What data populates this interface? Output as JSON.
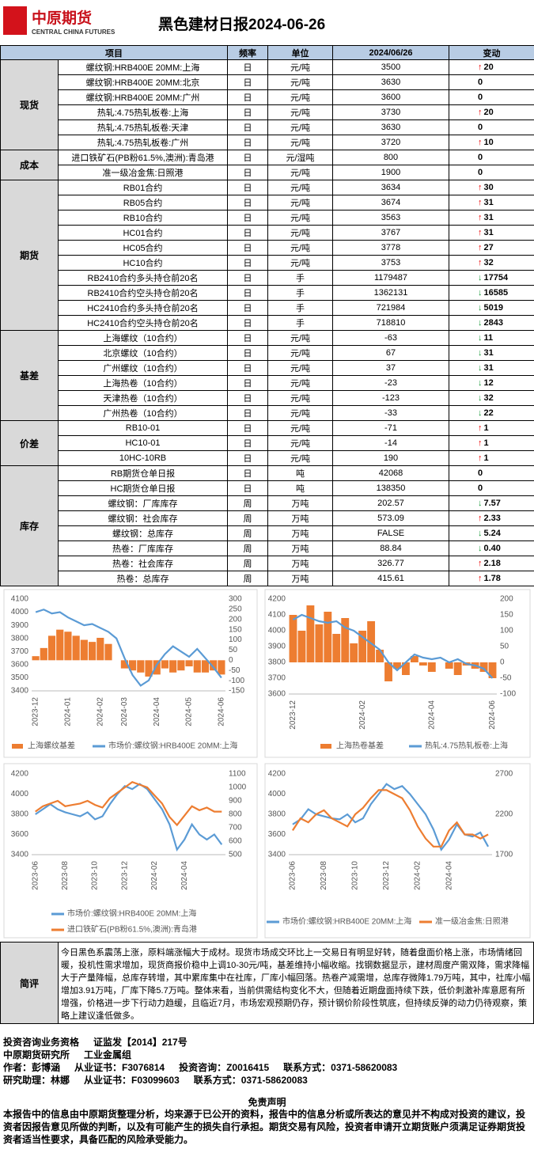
{
  "header": {
    "logo_cn": "中原期货",
    "logo_en": "CENTRAL CHINA FUTURES",
    "title": "黑色建材日报2024-06-26"
  },
  "table": {
    "columns": [
      "项目",
      "频率",
      "单位",
      "2024/06/26",
      "变动"
    ],
    "groups": [
      {
        "name": "现货",
        "rows": [
          {
            "cells": [
              "螺纹钢:HRB400E 20MM:上海",
              "日",
              "元/吨",
              "3500",
              "20"
            ],
            "trend": "up"
          },
          {
            "cells": [
              "螺纹钢:HRB400E 20MM:北京",
              "日",
              "元/吨",
              "3630",
              "0"
            ],
            "trend": "flat"
          },
          {
            "cells": [
              "螺纹钢:HRB400E 20MM:广州",
              "日",
              "元/吨",
              "3600",
              "0"
            ],
            "trend": "flat"
          },
          {
            "cells": [
              "热轧:4.75热轧板卷:上海",
              "日",
              "元/吨",
              "3730",
              "20"
            ],
            "trend": "up"
          },
          {
            "cells": [
              "热轧:4.75热轧板卷:天津",
              "日",
              "元/吨",
              "3630",
              "0"
            ],
            "trend": "flat"
          },
          {
            "cells": [
              "热轧:4.75热轧板卷:广州",
              "日",
              "元/吨",
              "3720",
              "10"
            ],
            "trend": "up"
          }
        ]
      },
      {
        "name": "成本",
        "rows": [
          {
            "cells": [
              "进口铁矿石(PB粉61.5%,澳洲):青岛港",
              "日",
              "元/湿吨",
              "800",
              "0"
            ],
            "trend": "flat"
          },
          {
            "cells": [
              "准一级冶金焦:日照港",
              "日",
              "元/吨",
              "1900",
              "0"
            ],
            "trend": "flat"
          }
        ]
      },
      {
        "name": "期货",
        "rows": [
          {
            "cells": [
              "RB01合约",
              "日",
              "元/吨",
              "3634",
              "30"
            ],
            "trend": "up"
          },
          {
            "cells": [
              "RB05合约",
              "日",
              "元/吨",
              "3674",
              "31"
            ],
            "trend": "up"
          },
          {
            "cells": [
              "RB10合约",
              "日",
              "元/吨",
              "3563",
              "31"
            ],
            "trend": "up"
          },
          {
            "cells": [
              "HC01合约",
              "日",
              "元/吨",
              "3767",
              "31"
            ],
            "trend": "up"
          },
          {
            "cells": [
              "HC05合约",
              "日",
              "元/吨",
              "3778",
              "27"
            ],
            "trend": "up"
          },
          {
            "cells": [
              "HC10合约",
              "日",
              "元/吨",
              "3753",
              "32"
            ],
            "trend": "up"
          },
          {
            "cells": [
              "RB2410合约多头持仓前20名",
              "日",
              "手",
              "1179487",
              "17754"
            ],
            "trend": "down"
          },
          {
            "cells": [
              "RB2410合约空头持仓前20名",
              "日",
              "手",
              "1362131",
              "16585"
            ],
            "trend": "down"
          },
          {
            "cells": [
              "HC2410合约多头持仓前20名",
              "日",
              "手",
              "721984",
              "5019"
            ],
            "trend": "down"
          },
          {
            "cells": [
              "HC2410合约空头持仓前20名",
              "日",
              "手",
              "718810",
              "2843"
            ],
            "trend": "down"
          }
        ]
      },
      {
        "name": "基差",
        "rows": [
          {
            "cells": [
              "上海螺纹（10合约）",
              "日",
              "元/吨",
              "-63",
              "11"
            ],
            "trend": "down"
          },
          {
            "cells": [
              "北京螺纹（10合约）",
              "日",
              "元/吨",
              "67",
              "31"
            ],
            "trend": "down"
          },
          {
            "cells": [
              "广州螺纹（10合约）",
              "日",
              "元/吨",
              "37",
              "31"
            ],
            "trend": "down"
          },
          {
            "cells": [
              "上海热卷（10合约）",
              "日",
              "元/吨",
              "-23",
              "12"
            ],
            "trend": "down"
          },
          {
            "cells": [
              "天津热卷（10合约）",
              "日",
              "元/吨",
              "-123",
              "32"
            ],
            "trend": "down"
          },
          {
            "cells": [
              "广州热卷（10合约）",
              "日",
              "元/吨",
              "-33",
              "22"
            ],
            "trend": "down"
          }
        ]
      },
      {
        "name": "价差",
        "rows": [
          {
            "cells": [
              "RB10-01",
              "日",
              "元/吨",
              "-71",
              "1"
            ],
            "trend": "up"
          },
          {
            "cells": [
              "HC10-01",
              "日",
              "元/吨",
              "-14",
              "1"
            ],
            "trend": "up"
          },
          {
            "cells": [
              "10HC-10RB",
              "日",
              "元/吨",
              "190",
              "1"
            ],
            "trend": "up"
          }
        ]
      },
      {
        "name": "库存",
        "rows": [
          {
            "cells": [
              "RB期货仓单日报",
              "日",
              "吨",
              "42068",
              "0"
            ],
            "trend": "flat"
          },
          {
            "cells": [
              "HC期货仓单日报",
              "日",
              "吨",
              "138350",
              "0"
            ],
            "trend": "flat"
          },
          {
            "cells": [
              "螺纹钢：厂库库存",
              "周",
              "万吨",
              "202.57",
              "7.57"
            ],
            "trend": "down"
          },
          {
            "cells": [
              "螺纹钢：社会库存",
              "周",
              "万吨",
              "573.09",
              "2.33"
            ],
            "trend": "up"
          },
          {
            "cells": [
              "螺纹钢：总库存",
              "周",
              "万吨",
              "FALSE",
              "5.24"
            ],
            "trend": "down"
          },
          {
            "cells": [
              "热卷：厂库库存",
              "周",
              "万吨",
              "88.84",
              "0.40"
            ],
            "trend": "down"
          },
          {
            "cells": [
              "热卷：社会库存",
              "周",
              "万吨",
              "326.77",
              "2.18"
            ],
            "trend": "up"
          },
          {
            "cells": [
              "热卷：总库存",
              "周",
              "万吨",
              "415.61",
              "1.78"
            ],
            "trend": "up"
          }
        ]
      }
    ]
  },
  "chart_data": [
    {
      "type": "combo",
      "categories": [
        "2023-12",
        null,
        null,
        null,
        "2024-01",
        null,
        null,
        null,
        "2024-02",
        null,
        null,
        "2024-03",
        null,
        null,
        null,
        "2024-04",
        null,
        null,
        null,
        "2024-05",
        null,
        null,
        null,
        "2024-06"
      ],
      "ylim": [
        3400,
        4100
      ],
      "yticks": [
        3400,
        3500,
        3600,
        3700,
        3800,
        3900,
        4000,
        4100
      ],
      "y2lim": [
        -150,
        300
      ],
      "y2ticks": [
        -150,
        -100,
        -50,
        0,
        50,
        100,
        150,
        200,
        250,
        300
      ],
      "series": [
        {
          "name": "上海螺纹基差",
          "color": "#ed7d31",
          "type": "bar",
          "axis": "y2",
          "values": [
            20,
            60,
            120,
            150,
            140,
            120,
            100,
            90,
            110,
            80,
            0,
            -40,
            -50,
            -60,
            -80,
            -70,
            -40,
            -60,
            -50,
            -30,
            -60,
            -60,
            -50,
            -70
          ]
        },
        {
          "name": "市场价:螺纹钢:HRB400E 20MM:上海",
          "color": "#5b9bd5",
          "type": "line",
          "values": [
            4000,
            4020,
            3990,
            4000,
            3960,
            3930,
            3900,
            3910,
            3880,
            3850,
            3800,
            3650,
            3520,
            3440,
            3480,
            3600,
            3680,
            3740,
            3700,
            3660,
            3720,
            3650,
            3580,
            3500
          ]
        }
      ]
    },
    {
      "type": "combo",
      "categories": [
        "2023-12",
        null,
        null,
        null,
        null,
        null,
        null,
        null,
        "2024-02",
        null,
        null,
        null,
        null,
        null,
        null,
        null,
        "2024-04",
        null,
        null,
        null,
        null,
        null,
        null,
        "2024-06"
      ],
      "ylim": [
        3600,
        4200
      ],
      "yticks": [
        3600,
        3700,
        3800,
        3900,
        4000,
        4100,
        4200
      ],
      "y2lim": [
        -100,
        200
      ],
      "y2ticks": [
        -100,
        -50,
        0,
        50,
        100,
        150,
        200
      ],
      "series": [
        {
          "name": "上海热卷基差",
          "color": "#ed7d31",
          "type": "bar",
          "axis": "y2",
          "values": [
            150,
            100,
            180,
            120,
            160,
            90,
            140,
            60,
            100,
            130,
            40,
            -60,
            -20,
            -40,
            20,
            -10,
            -30,
            0,
            -20,
            -40,
            -10,
            -20,
            -30,
            -50
          ]
        },
        {
          "name": "热轧:4.75热轧板卷:上海",
          "color": "#5b9bd5",
          "type": "line",
          "values": [
            4070,
            4100,
            4080,
            4060,
            4050,
            4060,
            4020,
            4000,
            3960,
            3920,
            3880,
            3800,
            3750,
            3800,
            3850,
            3830,
            3820,
            3830,
            3800,
            3820,
            3790,
            3780,
            3760,
            3700
          ]
        }
      ]
    },
    {
      "type": "line",
      "categories": [
        "2023-06",
        null,
        null,
        null,
        "2023-08",
        null,
        null,
        null,
        "2023-10",
        null,
        null,
        null,
        "2023-12",
        null,
        null,
        null,
        "2024-02",
        null,
        null,
        null,
        "2024-04",
        null,
        null,
        null,
        null,
        null
      ],
      "ylim": [
        3400,
        4200
      ],
      "yticks": [
        3400,
        3600,
        3800,
        4000,
        4200
      ],
      "y2lim": [
        500,
        1100
      ],
      "y2ticks": [
        500,
        600,
        700,
        800,
        900,
        1000,
        1100
      ],
      "series": [
        {
          "name": "市场价:螺纹钢:HRB400E 20MM:上海",
          "color": "#5b9bd5",
          "type": "line",
          "values": [
            3800,
            3850,
            3900,
            3850,
            3820,
            3800,
            3780,
            3820,
            3750,
            3780,
            3900,
            4000,
            4080,
            4050,
            4100,
            4050,
            3950,
            3850,
            3700,
            3450,
            3550,
            3700,
            3600,
            3550,
            3600,
            3500
          ]
        },
        {
          "name": "进口铁矿石(PB粉61.5%,澳洲):青岛港",
          "color": "#ed7d31",
          "type": "line",
          "axis": "y2",
          "values": [
            820,
            860,
            880,
            900,
            860,
            870,
            880,
            900,
            870,
            850,
            920,
            960,
            1000,
            1040,
            1020,
            1000,
            940,
            880,
            780,
            720,
            790,
            860,
            830,
            850,
            820,
            820
          ]
        }
      ]
    },
    {
      "type": "line",
      "categories": [
        "2023-06",
        null,
        null,
        null,
        "2023-08",
        null,
        null,
        null,
        "2023-10",
        null,
        null,
        null,
        "2023-12",
        null,
        null,
        null,
        "2024-02",
        null,
        null,
        null,
        "2024-04",
        null,
        null,
        null,
        null,
        null
      ],
      "ylim": [
        3400,
        4200
      ],
      "yticks": [
        3400,
        3600,
        3800,
        4000,
        4200
      ],
      "y2lim": [
        1700,
        2700
      ],
      "y2ticks": [
        1700,
        2200,
        2700
      ],
      "series": [
        {
          "name": "市场价:螺纹钢:HRB400E 20MM:上海",
          "color": "#5b9bd5",
          "type": "line",
          "values": [
            3700,
            3750,
            3850,
            3800,
            3780,
            3760,
            3750,
            3800,
            3720,
            3760,
            3900,
            4000,
            4100,
            4050,
            4080,
            4000,
            3900,
            3800,
            3650,
            3450,
            3550,
            3700,
            3600,
            3580,
            3620,
            3480
          ]
        },
        {
          "name": "准一级冶金焦:日照港",
          "color": "#ed7d31",
          "type": "line",
          "axis": "y2",
          "values": [
            2000,
            2150,
            2100,
            2200,
            2250,
            2150,
            2100,
            2050,
            2200,
            2280,
            2400,
            2500,
            2500,
            2450,
            2400,
            2250,
            2050,
            1900,
            1800,
            1800,
            2000,
            2100,
            1950,
            1950,
            1900,
            1950
          ]
        }
      ]
    }
  ],
  "comment": {
    "label": "简评",
    "text": "今日黑色系震荡上涨，原料端涨幅大于成材。现货市场成交环比上一交易日有明显好转，随着盘面价格上涨，市场情绪回暖，投机性需求增加，现货商报价稳中上调10-30元/吨，基差维持小幅收缩。找钢数据显示，建材周度产需双降，需求降幅大于产量降幅，总库存转增，其中累库集中在社库，厂库小幅回落。热卷产减需增，总库存微降1.79万吨，其中，社库小幅增加3.91万吨，厂库下降5.7万吨。整体来看，当前供需结构变化不大，但随着近期盘面持续下跌，低价刺激补库意愿有所增强，价格进一步下行动力趋缓，且临近7月，市场宏观预期仍存，预计钢价阶段性筑底，但持续反弹的动力仍待观察，策略上建议逢低做多。"
  },
  "footer": {
    "lines": [
      [
        "投资咨询业务资格",
        "证监发【2014】217号"
      ],
      [
        "中原期货研究所",
        "工业金属组"
      ],
      [
        "作者：彭博涵",
        "从业证书：F3076814",
        "投资咨询：Z0016415",
        "联系方式：0371-58620083"
      ],
      [
        "研究助理：林娜",
        "从业证书：F03099603",
        "联系方式：0371-58620083"
      ]
    ]
  },
  "disclaimer": {
    "title": "免责声明",
    "text": "本报告中的信息由中原期货整理分析，均来源于已公开的资料，报告中的信息分析或所表达的意见并不构成对投资的建议，投资者因报告意见所做的判断，以及有可能产生的损失自行承担。期货交易有风险，投资者申请开立期货账户须满足证券期货投资者适当性要求，具备匹配的风险承受能力。"
  }
}
